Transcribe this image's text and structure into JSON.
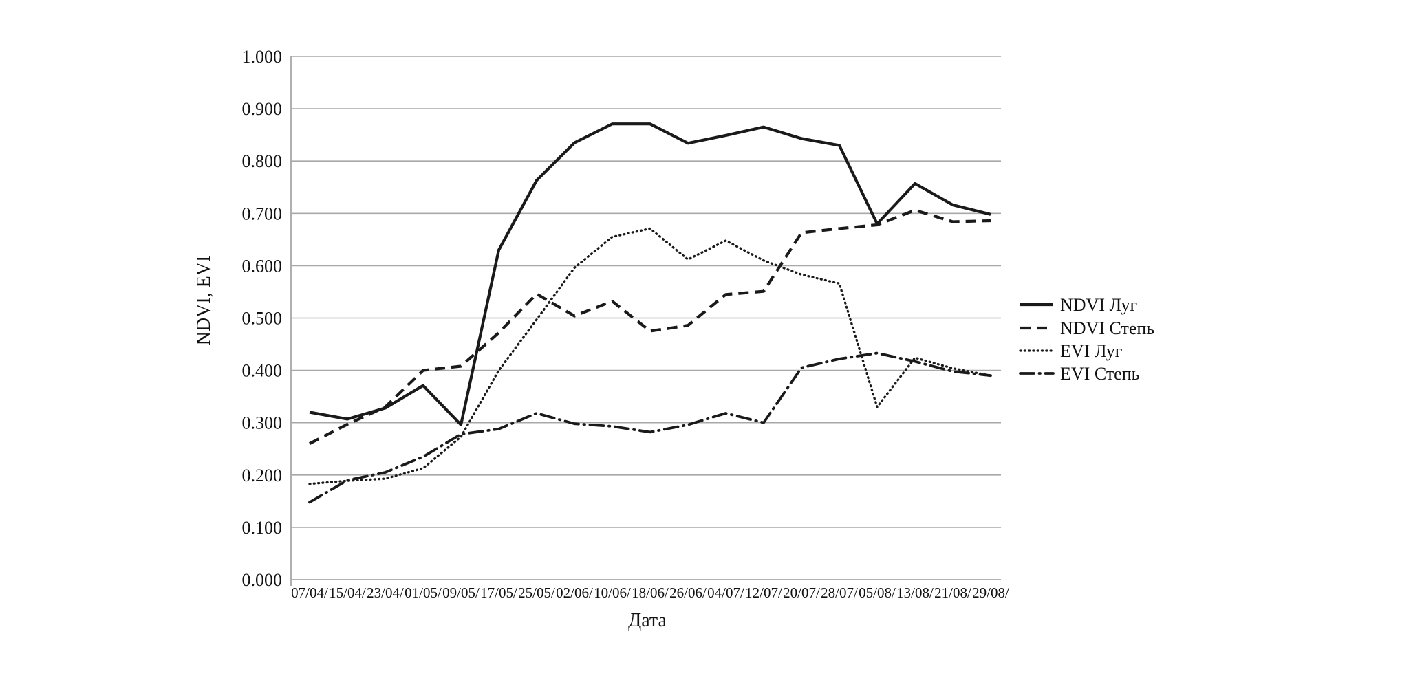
{
  "chart_data": {
    "type": "line",
    "title": "",
    "xlabel": "Дата",
    "ylabel": "NDVI, EVI",
    "ylim": [
      0.0,
      1.0
    ],
    "ytick_step": 0.1,
    "ytick_labels": [
      "0.000",
      "0.100",
      "0.200",
      "0.300",
      "0.400",
      "0.500",
      "0.600",
      "0.700",
      "0.800",
      "0.900",
      "1.000"
    ],
    "grid": "horizontal",
    "legend_position": "right",
    "colors": {
      "line": "#1a1a1a",
      "grid": "#a8a8a8",
      "background": "#ffffff"
    },
    "categories": [
      "07/04/",
      "15/04/",
      "23/04/",
      "01/05/",
      "09/05/",
      "17/05/",
      "25/05/",
      "02/06/",
      "10/06/",
      "18/06/",
      "26/06/",
      "04/07/",
      "12/07/",
      "20/07/",
      "28/07/",
      "05/08/",
      "13/08/",
      "21/08/",
      "29/08/"
    ],
    "series": [
      {
        "name": "NDVI Луг",
        "style": "solid",
        "values": [
          0.32,
          0.307,
          0.328,
          0.371,
          0.296,
          0.63,
          0.763,
          0.835,
          0.871,
          0.871,
          0.834,
          0.849,
          0.865,
          0.843,
          0.83,
          0.68,
          0.757,
          0.716,
          0.698
        ]
      },
      {
        "name": "NDVI Степь",
        "style": "dashed",
        "values": [
          0.26,
          0.297,
          0.33,
          0.4,
          0.408,
          0.472,
          0.546,
          0.504,
          0.532,
          0.475,
          0.486,
          0.545,
          0.551,
          0.663,
          0.671,
          0.678,
          0.706,
          0.684,
          0.686
        ]
      },
      {
        "name": "EVI Луг",
        "style": "dotted",
        "values": [
          0.183,
          0.189,
          0.193,
          0.213,
          0.273,
          0.4,
          0.497,
          0.596,
          0.655,
          0.671,
          0.612,
          0.648,
          0.61,
          0.583,
          0.566,
          0.33,
          0.424,
          0.404,
          0.39
        ]
      },
      {
        "name": "EVI Степь",
        "style": "dashdot",
        "values": [
          0.148,
          0.19,
          0.205,
          0.235,
          0.278,
          0.288,
          0.318,
          0.298,
          0.293,
          0.282,
          0.296,
          0.318,
          0.3,
          0.405,
          0.422,
          0.433,
          0.417,
          0.398,
          0.39
        ]
      }
    ]
  }
}
